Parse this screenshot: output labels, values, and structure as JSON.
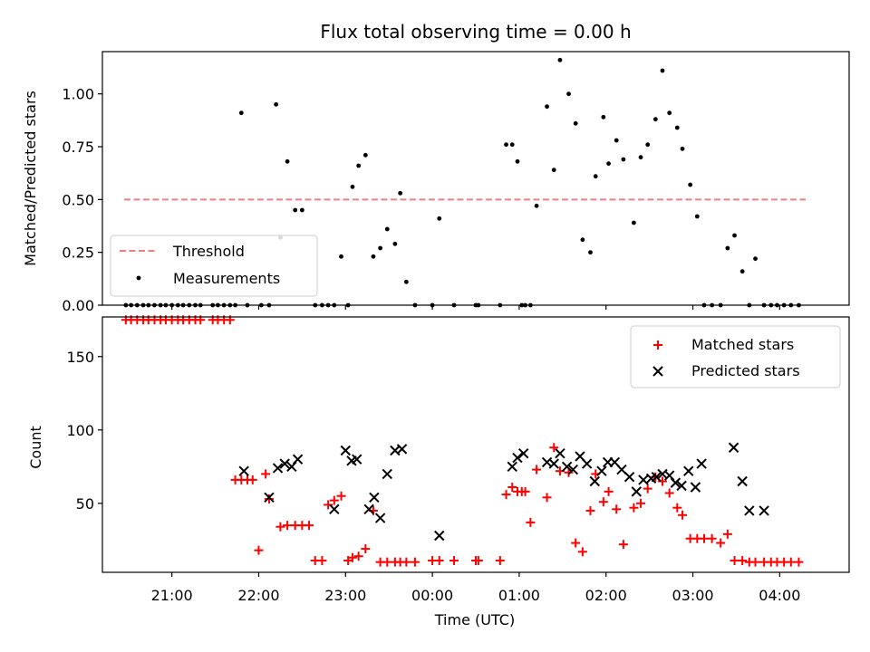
{
  "title": "Flux total observing time = 0.00 h",
  "colors": {
    "threshold": "#f08080",
    "measurements": "#000000",
    "matched": "#ff0000",
    "predicted": "#000000"
  },
  "chart_data": [
    {
      "type": "scatter",
      "ylabel": "Matched/Predicted stars",
      "xlim": [
        20.2,
        28.8
      ],
      "ylim": [
        0,
        1.2
      ],
      "yticks": [
        "0.00",
        "0.25",
        "0.50",
        "0.75",
        "1.00"
      ],
      "ytick_values": [
        0,
        0.25,
        0.5,
        0.75,
        1.0
      ],
      "legend": {
        "position": "lower-left",
        "entries": [
          "Threshold",
          "Measurements"
        ]
      },
      "threshold": {
        "name": "Threshold",
        "y": 0.5,
        "x": [
          20.45,
          28.3
        ]
      },
      "series": [
        {
          "name": "Measurements",
          "x": [
            20.47,
            20.53,
            20.6,
            20.67,
            20.73,
            20.8,
            20.87,
            20.93,
            21.0,
            21.07,
            21.13,
            21.2,
            21.27,
            21.33,
            21.47,
            21.53,
            21.6,
            21.67,
            21.73,
            21.8,
            21.87,
            22.03,
            22.12,
            22.25,
            22.2,
            22.33,
            22.42,
            22.5,
            22.65,
            22.73,
            22.8,
            22.87,
            22.95,
            23.03,
            23.08,
            23.15,
            23.23,
            23.32,
            23.4,
            23.48,
            23.57,
            23.63,
            23.7,
            23.8,
            24.0,
            24.08,
            24.25,
            24.5,
            24.53,
            24.78,
            24.85,
            24.92,
            24.98,
            25.03,
            25.07,
            25.13,
            25.2,
            25.32,
            25.4,
            25.47,
            25.57,
            25.65,
            25.73,
            25.82,
            25.88,
            25.97,
            26.03,
            26.12,
            26.2,
            26.32,
            26.4,
            26.48,
            26.57,
            26.65,
            26.73,
            26.82,
            26.88,
            26.97,
            27.05,
            27.13,
            27.22,
            27.32,
            27.4,
            27.48,
            27.57,
            27.65,
            27.72,
            27.82,
            27.9,
            27.97,
            28.05,
            28.13,
            28.22
          ],
          "y": [
            0,
            0,
            0,
            0,
            0,
            0,
            0,
            0,
            0,
            0,
            0,
            0,
            0,
            0,
            0,
            0,
            0,
            0,
            0,
            0.91,
            0,
            0,
            0,
            0.32,
            0.95,
            0.68,
            0.45,
            0.45,
            0,
            0,
            0,
            0,
            0.23,
            0,
            0.56,
            0.66,
            0.71,
            0.23,
            0.27,
            0.36,
            0.29,
            0.53,
            0.11,
            0,
            0,
            0.41,
            0,
            0,
            0,
            0,
            0.76,
            0.76,
            0.68,
            0,
            0,
            0,
            0.47,
            0.94,
            0.64,
            1.16,
            1.0,
            0.86,
            0.31,
            0.25,
            0.61,
            0.89,
            0.67,
            0.78,
            0.69,
            0.39,
            0.7,
            0.76,
            0.88,
            1.11,
            0.91,
            0.84,
            0.74,
            0.57,
            0.42,
            0,
            0,
            0,
            0.27,
            0.33,
            0.16,
            0,
            0.22,
            0,
            0,
            0,
            0,
            0,
            0
          ]
        }
      ]
    },
    {
      "type": "scatter",
      "xlabel": "Time (UTC)",
      "ylabel": "Count",
      "xlim": [
        20.2,
        28.8
      ],
      "ylim": [
        3,
        177
      ],
      "yticks": [
        "50",
        "100",
        "150"
      ],
      "ytick_values": [
        50,
        100,
        150
      ],
      "xticks": [
        "21:00",
        "22:00",
        "23:00",
        "00:00",
        "01:00",
        "02:00",
        "03:00",
        "04:00"
      ],
      "xtick_values": [
        21,
        22,
        23,
        24,
        25,
        26,
        27,
        28
      ],
      "legend": {
        "position": "upper-right",
        "entries": [
          "Matched stars",
          "Predicted stars"
        ]
      },
      "series": [
        {
          "name": "Matched stars",
          "x": [
            20.47,
            20.53,
            20.6,
            20.67,
            20.73,
            20.8,
            20.87,
            20.93,
            21.0,
            21.07,
            21.13,
            21.2,
            21.27,
            21.33,
            21.47,
            21.53,
            21.6,
            21.67,
            21.73,
            21.8,
            21.87,
            21.93,
            22.0,
            22.08,
            22.12,
            22.25,
            22.33,
            22.42,
            22.5,
            22.58,
            22.65,
            22.73,
            22.8,
            22.87,
            22.95,
            23.03,
            23.08,
            23.15,
            23.23,
            23.32,
            23.4,
            23.48,
            23.57,
            23.63,
            23.7,
            23.8,
            24.0,
            24.08,
            24.25,
            24.5,
            24.53,
            24.78,
            24.85,
            24.92,
            24.98,
            25.03,
            25.07,
            25.13,
            25.2,
            25.32,
            25.4,
            25.47,
            25.57,
            25.65,
            25.73,
            25.82,
            25.88,
            25.97,
            26.03,
            26.12,
            26.2,
            26.32,
            26.4,
            26.48,
            26.57,
            26.65,
            26.73,
            26.82,
            26.88,
            26.97,
            27.05,
            27.13,
            27.22,
            27.32,
            27.4,
            27.48,
            27.57,
            27.65,
            27.72,
            27.82,
            27.9,
            27.97,
            28.05,
            28.13,
            28.22
          ],
          "y": [
            175,
            175,
            175,
            175,
            175,
            175,
            175,
            175,
            175,
            175,
            175,
            175,
            175,
            175,
            175,
            175,
            175,
            175,
            66,
            66,
            66,
            66,
            18,
            70,
            53,
            34,
            35,
            35,
            35,
            35,
            11,
            11,
            49,
            52,
            55,
            11,
            13,
            14,
            19,
            45,
            10,
            10,
            10,
            10,
            10,
            10,
            11,
            11,
            11,
            11,
            11,
            11,
            56,
            61,
            58,
            58,
            58,
            37,
            73,
            54,
            88,
            72,
            71,
            23,
            17,
            45,
            70,
            51,
            58,
            46,
            22,
            47,
            50,
            60,
            68,
            65,
            57,
            47,
            42,
            26,
            26,
            26,
            26,
            23,
            29,
            11,
            11,
            10,
            10,
            10,
            10,
            10,
            10,
            10,
            10
          ],
          "y_override_note": ""
        },
        {
          "name": "Predicted stars",
          "x": [
            21.83,
            22.12,
            22.22,
            22.3,
            22.38,
            22.45,
            22.87,
            23.0,
            23.07,
            23.13,
            23.27,
            23.33,
            23.4,
            23.48,
            23.57,
            23.65,
            24.08,
            24.92,
            24.98,
            25.05,
            25.32,
            25.4,
            25.47,
            25.55,
            25.62,
            25.7,
            25.78,
            25.87,
            25.95,
            26.02,
            26.1,
            26.18,
            26.27,
            26.35,
            26.43,
            26.52,
            26.58,
            26.65,
            26.73,
            26.8,
            26.87,
            26.95,
            27.03,
            27.1,
            27.47,
            27.57,
            27.65,
            27.82
          ],
          "y": [
            72,
            54,
            74,
            77,
            75,
            80,
            46,
            86,
            79,
            80,
            46,
            54,
            40,
            70,
            86,
            87,
            28,
            75,
            81,
            84,
            78,
            77,
            84,
            75,
            73,
            82,
            77,
            65,
            72,
            78,
            78,
            73,
            68,
            58,
            66,
            67,
            68,
            70,
            69,
            64,
            62,
            72,
            61,
            77,
            88,
            65,
            45,
            45
          ]
        }
      ]
    }
  ]
}
